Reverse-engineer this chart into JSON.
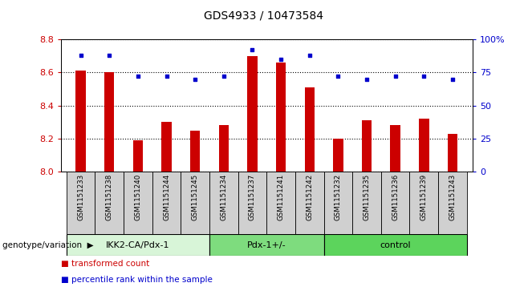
{
  "title": "GDS4933 / 10473584",
  "samples": [
    "GSM1151233",
    "GSM1151238",
    "GSM1151240",
    "GSM1151244",
    "GSM1151245",
    "GSM1151234",
    "GSM1151237",
    "GSM1151241",
    "GSM1151242",
    "GSM1151232",
    "GSM1151235",
    "GSM1151236",
    "GSM1151239",
    "GSM1151243"
  ],
  "bar_values": [
    8.61,
    8.6,
    8.19,
    8.3,
    8.25,
    8.28,
    8.7,
    8.66,
    8.51,
    8.2,
    8.31,
    8.28,
    8.32,
    8.23
  ],
  "dot_values": [
    88,
    88,
    72,
    72,
    70,
    72,
    92,
    85,
    88,
    72,
    70,
    72,
    72,
    70
  ],
  "ylim_left": [
    8.0,
    8.8
  ],
  "ylim_right": [
    0,
    100
  ],
  "yticks_left": [
    8.0,
    8.2,
    8.4,
    8.6,
    8.8
  ],
  "yticks_right": [
    0,
    25,
    50,
    75,
    100
  ],
  "ytick_labels_right": [
    "0",
    "25",
    "50",
    "75",
    "100%"
  ],
  "groups": [
    {
      "label": "IKK2-CA/Pdx-1",
      "start": 0,
      "end": 5,
      "color": "#d8f5d8"
    },
    {
      "label": "Pdx-1+/-",
      "start": 5,
      "end": 9,
      "color": "#7edc7e"
    },
    {
      "label": "control",
      "start": 9,
      "end": 14,
      "color": "#5cd45c"
    }
  ],
  "bar_color": "#cc0000",
  "dot_color": "#0000cc",
  "bar_width": 0.35,
  "background_color": "#ffffff",
  "legend_items": [
    {
      "label": "transformed count",
      "color": "#cc0000"
    },
    {
      "label": "percentile rank within the sample",
      "color": "#0000cc"
    }
  ],
  "genotype_label": "genotype/variation",
  "base_value": 8.0,
  "sample_bg_color": "#d0d0d0"
}
